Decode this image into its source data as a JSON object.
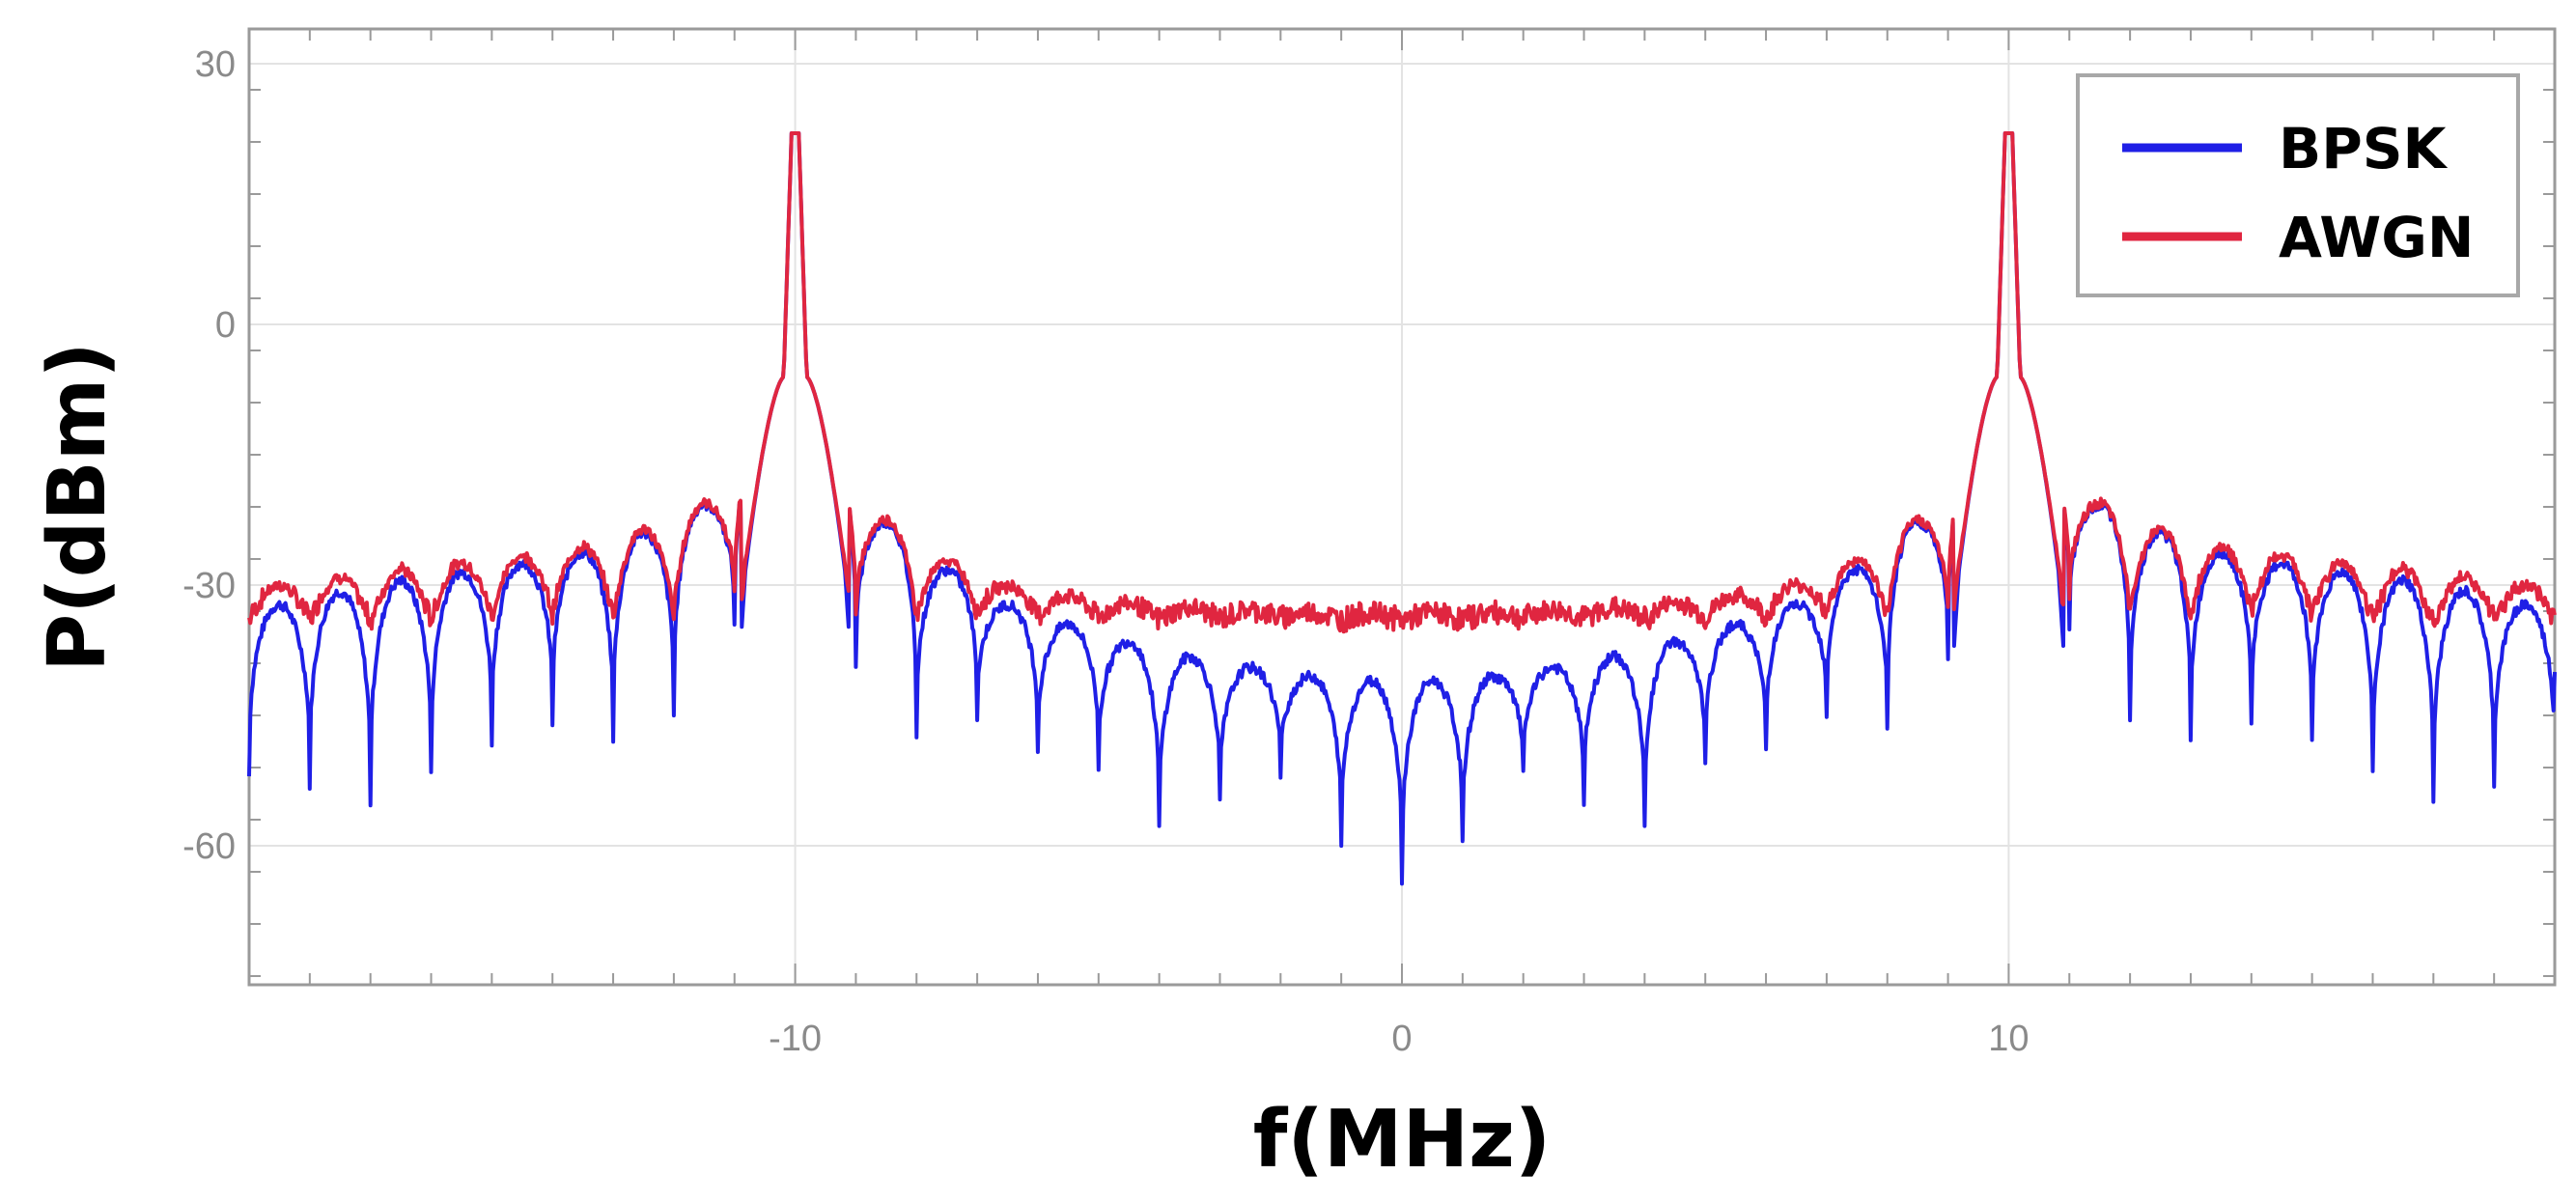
{
  "chart_data": {
    "type": "line",
    "title": "",
    "xlabel": "f(MHz)",
    "ylabel": "P(dBm)",
    "xlim": [
      -19,
      19
    ],
    "ylim": [
      -76,
      34
    ],
    "xticks": [
      {
        "value": -10,
        "label": "-10"
      },
      {
        "value": 0,
        "label": "0"
      },
      {
        "value": 10,
        "label": "10"
      }
    ],
    "yticks": [
      {
        "value": 30,
        "label": "30"
      },
      {
        "value": 0,
        "label": "0"
      },
      {
        "value": -30,
        "label": "-30"
      },
      {
        "value": -60,
        "label": "-60"
      }
    ],
    "grid": true,
    "legend_position": "top-right",
    "carrier_frequencies": [
      -10,
      10
    ],
    "series": [
      {
        "name": "BPSK",
        "color": "#1f1fe6",
        "carrier_peak_dbm": 22,
        "x": [
          -19,
          -18,
          -17,
          -16,
          -15,
          -14,
          -13,
          -12,
          -11,
          -10,
          -9,
          -8,
          -7,
          -6,
          -5,
          -4,
          -3,
          -2,
          -1,
          0,
          1,
          2,
          3,
          4,
          5,
          6,
          7,
          8,
          9,
          10,
          11,
          12,
          13,
          14,
          15,
          16,
          17,
          18,
          19
        ],
        "lobe_peak": [
          -33,
          -31.5,
          -30,
          -29,
          -28,
          -27,
          -25.5,
          -22.5,
          -19,
          -6,
          -20,
          -25.5,
          -31,
          -33.5,
          -35.5,
          -37.5,
          -39,
          -40,
          -41,
          -41,
          -41,
          -40,
          -39,
          -37.5,
          -35.5,
          -33.5,
          -31,
          -25.5,
          -20,
          -6,
          -19,
          -22.5,
          -25.5,
          -27,
          -28,
          -29,
          -30,
          -31.5,
          -33
        ],
        "null_depth": [
          -52,
          -53,
          -55,
          -52,
          -48,
          -46,
          -48,
          -45,
          -35,
          null,
          -39,
          -47,
          -45,
          -49,
          -51,
          -58,
          -55,
          -52,
          -60,
          -64,
          -60,
          -52,
          -55,
          -58,
          -51,
          -49,
          -45,
          -47,
          -39,
          null,
          -35,
          -45,
          -48,
          -46,
          -48,
          -52,
          -55,
          -53,
          -52
        ]
      },
      {
        "name": "AWGN",
        "color": "#e02640",
        "carrier_peak_dbm": 22,
        "noise_floor_dbm": -34
      }
    ]
  }
}
